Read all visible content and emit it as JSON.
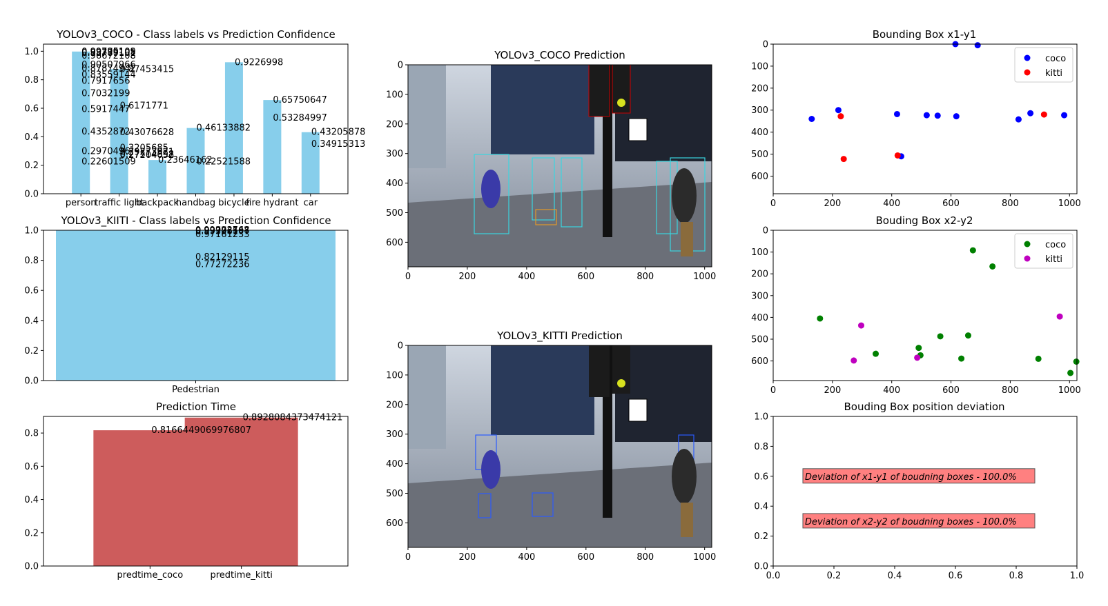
{
  "colors": {
    "bar_blue": "#87ceeb",
    "bar_red": "#cd5c5c",
    "coco_blue": "#0000ff",
    "kitti_red": "#ff0000",
    "coco_green": "#008000",
    "kitti_magenta": "#bf00bf",
    "box_fill": "#ff8080"
  },
  "chart_data": [
    {
      "id": "coco_bar",
      "type": "bar",
      "title": "YOLOv3_COCO - Class labels vs Prediction Confidence",
      "categories": [
        "person",
        "traffic light",
        "backpack",
        "handbag",
        "bicycle",
        "fire hydrant",
        "car"
      ],
      "values": [
        0.99795109,
        0.87453415,
        0.23646162,
        0.46133882,
        0.9226998,
        0.65750647,
        0.43205878
      ],
      "data_labels": [
        {
          "category": "person",
          "value": 0.99795109,
          "text": "0.99795109"
        },
        {
          "category": "person",
          "value": 0.99379105,
          "text": "0.99379105"
        },
        {
          "category": "person",
          "value": 0.98789101,
          "text": "0.98789101"
        },
        {
          "category": "person",
          "value": 0.96672108,
          "text": "0.96672108"
        },
        {
          "category": "person",
          "value": 0.90507966,
          "text": "0.90507966"
        },
        {
          "category": "person",
          "value": 0.87874942,
          "text": "0.87874942"
        },
        {
          "category": "person",
          "value": 0.83559144,
          "text": "0.83559144"
        },
        {
          "category": "person",
          "value": 0.7917656,
          "text": "0.7917656"
        },
        {
          "category": "person",
          "value": 0.7032199,
          "text": "0.7032199"
        },
        {
          "category": "person",
          "value": 0.5917447,
          "text": "0.5917447"
        },
        {
          "category": "person",
          "value": 0.4352872,
          "text": "0.4352872"
        },
        {
          "category": "person",
          "value": 0.2970496,
          "text": "0.2970496"
        },
        {
          "category": "person",
          "value": 0.22601509,
          "text": "0.22601509"
        },
        {
          "category": "traffic light",
          "value": 0.87453415,
          "text": "0.87453415"
        },
        {
          "category": "traffic light",
          "value": 0.6171771,
          "text": "0.6171771"
        },
        {
          "category": "traffic light",
          "value": 0.43076628,
          "text": "0.43076628"
        },
        {
          "category": "traffic light",
          "value": 0.3205685,
          "text": "0.3205685"
        },
        {
          "category": "traffic light",
          "value": 0.29273921,
          "text": "0.29273921"
        },
        {
          "category": "traffic light",
          "value": 0.27514898,
          "text": "0.27514898"
        },
        {
          "category": "traffic light",
          "value": 0.27204052,
          "text": "0.27204052"
        },
        {
          "category": "backpack",
          "value": 0.23646162,
          "text": "0.23646162"
        },
        {
          "category": "handbag",
          "value": 0.46133882,
          "text": "0.46133882"
        },
        {
          "category": "handbag",
          "value": 0.22521588,
          "text": "0.22521588"
        },
        {
          "category": "bicycle",
          "value": 0.9226998,
          "text": "0.9226998"
        },
        {
          "category": "fire hydrant",
          "value": 0.65750647,
          "text": "0.65750647"
        },
        {
          "category": "fire hydrant",
          "value": 0.53284997,
          "text": "0.53284997"
        },
        {
          "category": "car",
          "value": 0.43205878,
          "text": "0.43205878"
        },
        {
          "category": "car",
          "value": 0.34915313,
          "text": "0.34915313"
        }
      ],
      "ylim": [
        0,
        1.05
      ],
      "yticks": [
        "0.0",
        "0.2",
        "0.4",
        "0.6",
        "0.8",
        "1.0"
      ],
      "grid": false
    },
    {
      "id": "kitti_bar",
      "type": "bar",
      "title": "YOLOv3_KIITI - Class labels vs Prediction Confidence",
      "categories": [
        "Pedestrian"
      ],
      "values": [
        0.99993768
      ],
      "data_labels": [
        {
          "category": "Pedestrian",
          "value": 0.99993768,
          "text": "0.99993768"
        },
        {
          "category": "Pedestrian",
          "value": 0.99772567,
          "text": "0.99772567"
        },
        {
          "category": "Pedestrian",
          "value": 0.99306107,
          "text": "0.99306107"
        },
        {
          "category": "Pedestrian",
          "value": 0.97161233,
          "text": "0.97161233"
        },
        {
          "category": "Pedestrian",
          "value": 0.82129115,
          "text": "0.82129115"
        },
        {
          "category": "Pedestrian",
          "value": 0.77272236,
          "text": "0.77272236"
        }
      ],
      "ylim": [
        0,
        1.0
      ],
      "yticks": [
        "0.0",
        "0.2",
        "0.4",
        "0.6",
        "0.8",
        "1.0"
      ],
      "grid": false
    },
    {
      "id": "time_bar",
      "type": "bar",
      "title": "Prediction Time",
      "categories": [
        "predtime_coco",
        "predtime_kitti"
      ],
      "values": [
        0.8166449069976807,
        0.8928084373474121
      ],
      "data_labels": [
        {
          "category": "predtime_coco",
          "value": 0.8166449069976807,
          "text": "0.8166449069976807"
        },
        {
          "category": "predtime_kitti",
          "value": 0.8928084373474121,
          "text": "0.8928084373474121"
        }
      ],
      "ylim": [
        0,
        0.9
      ],
      "yticks": [
        "0.0",
        "0.2",
        "0.4",
        "0.6",
        "0.8"
      ],
      "grid": false
    },
    {
      "id": "coco_image",
      "type": "image",
      "title": "YOLOv3_COCO Prediction",
      "xlim": [
        0,
        1024
      ],
      "ylim": [
        683,
        0
      ],
      "xticks": [
        "0",
        "200",
        "400",
        "600",
        "800",
        "1000"
      ],
      "yticks": [
        "0",
        "100",
        "200",
        "300",
        "400",
        "500",
        "600"
      ]
    },
    {
      "id": "kitti_image",
      "type": "image",
      "title": "YOLOv3_KITTI Prediction",
      "xlim": [
        0,
        1024
      ],
      "ylim": [
        683,
        0
      ],
      "xticks": [
        "0",
        "200",
        "400",
        "600",
        "800",
        "1000"
      ],
      "yticks": [
        "0",
        "100",
        "200",
        "300",
        "400",
        "500",
        "600"
      ]
    },
    {
      "id": "scatter_x1y1",
      "type": "scatter",
      "title": "Bounding Box x1-y1",
      "xlim": [
        0,
        1025
      ],
      "ylim": [
        680,
        0
      ],
      "xticks": [
        "0",
        "200",
        "400",
        "600",
        "800",
        "1000"
      ],
      "yticks": [
        "0",
        "100",
        "200",
        "300",
        "400",
        "500",
        "600"
      ],
      "legend": "top-right",
      "series": [
        {
          "name": "coco",
          "color": "blue",
          "points": [
            [
              130,
              340
            ],
            [
              220,
              300
            ],
            [
              418,
              318
            ],
            [
              432,
              510
            ],
            [
              518,
              323
            ],
            [
              555,
              325
            ],
            [
              615,
              0
            ],
            [
              618,
              328
            ],
            [
              690,
              5
            ],
            [
              828,
              342
            ],
            [
              868,
              314
            ],
            [
              982,
              323
            ]
          ]
        },
        {
          "name": "kitti",
          "color": "red",
          "points": [
            [
              228,
              328
            ],
            [
              238,
              522
            ],
            [
              420,
              506
            ],
            [
              914,
              320
            ]
          ]
        }
      ]
    },
    {
      "id": "scatter_x2y2",
      "type": "scatter",
      "title": "Bouding Box x2-y2",
      "xlim": [
        0,
        1025
      ],
      "ylim": [
        690,
        0
      ],
      "xticks": [
        "0",
        "200",
        "400",
        "600",
        "800",
        "1000"
      ],
      "yticks": [
        "0",
        "100",
        "200",
        "300",
        "400",
        "500",
        "600"
      ],
      "legend": "top-right",
      "series": [
        {
          "name": "coco",
          "color": "green",
          "points": [
            [
              158,
              405
            ],
            [
              346,
              567
            ],
            [
              491,
              540
            ],
            [
              497,
              574
            ],
            [
              564,
              487
            ],
            [
              635,
              589
            ],
            [
              658,
              483
            ],
            [
              674,
              92
            ],
            [
              740,
              166
            ],
            [
              895,
              590
            ],
            [
              1003,
              655
            ],
            [
              1023,
              603
            ]
          ]
        },
        {
          "name": "kitti",
          "color": "magenta",
          "points": [
            [
              297,
              437
            ],
            [
              272,
              598
            ],
            [
              486,
              585
            ],
            [
              967,
              396
            ]
          ]
        }
      ]
    },
    {
      "id": "deviation",
      "type": "text",
      "title": "Bouding Box position deviation",
      "xlim": [
        0,
        1
      ],
      "ylim": [
        0,
        1
      ],
      "xticks": [
        "0.0",
        "0.2",
        "0.4",
        "0.6",
        "0.8",
        "1.0"
      ],
      "yticks": [
        "0.0",
        "0.2",
        "0.4",
        "0.6",
        "0.8",
        "1.0"
      ],
      "annotations": [
        {
          "text": "Deviation of x1-y1 of boudning boxes - 100.0%",
          "x": 0.1,
          "y": 0.6
        },
        {
          "text": "Deviation of x2-y2 of boudning boxes - 100.0%",
          "x": 0.1,
          "y": 0.3
        }
      ]
    }
  ]
}
